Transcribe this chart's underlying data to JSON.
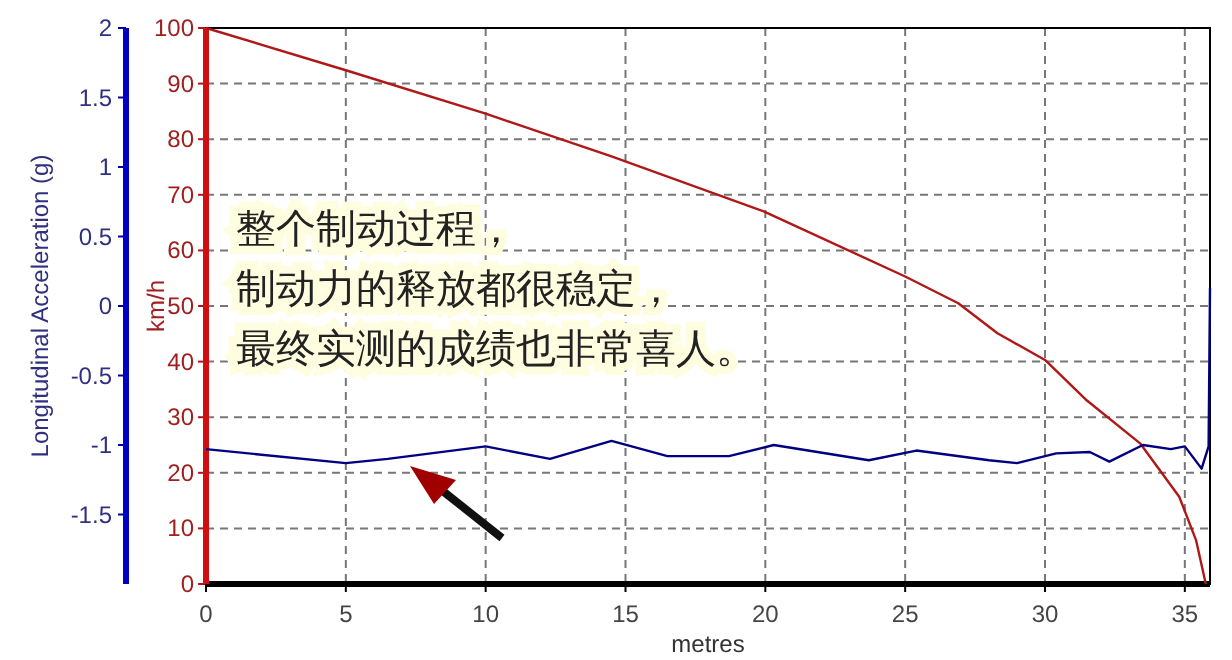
{
  "chart_data": {
    "type": "line",
    "xlabel": "metres",
    "ylabel": "km/h",
    "y2label": "Longitudinal Acceleration (g)",
    "xlim": [
      0,
      35.9
    ],
    "xticks": [
      0,
      5,
      10,
      15,
      20,
      25,
      30,
      35
    ],
    "ylim": [
      0,
      100
    ],
    "yticks": [
      0,
      10,
      20,
      30,
      40,
      50,
      60,
      70,
      80,
      90,
      100
    ],
    "y2lim": [
      -2,
      2
    ],
    "y2ticks": [
      2,
      1.5,
      1,
      0.5,
      0,
      -0.5,
      -1,
      -1.5
    ],
    "grid": true,
    "annotations": [
      "整个制动过程，",
      "制动力的释放都很稳定，",
      "最终实测的成绩也非常喜人。"
    ],
    "series": [
      {
        "color": "#b01818",
        "x": [
          0,
          5,
          10,
          14.5,
          20,
          25,
          26.9,
          28.3,
          30,
          31.5,
          33.4,
          34.8,
          35.4,
          35.75
        ],
        "values": [
          100,
          92.4,
          84.6,
          76.9,
          66.9,
          55.3,
          50.5,
          45.1,
          40.3,
          33,
          25.3,
          15.7,
          7.9,
          0
        ]
      },
      {
        "color": "#000080",
        "axis": "y2",
        "x": [
          0,
          5,
          6.5,
          10,
          12.3,
          14.5,
          16.5,
          18.7,
          20.3,
          23.7,
          25.4,
          28,
          29,
          30.4,
          31.6,
          32.3,
          33.5,
          34.5,
          35,
          35.6,
          35.85,
          35.9
        ],
        "values": [
          -1.03,
          -1.13,
          -1.1,
          -1.01,
          -1.1,
          -0.97,
          -1.08,
          -1.08,
          -1,
          -1.11,
          -1.04,
          -1.11,
          -1.13,
          -1.06,
          -1.05,
          -1.12,
          -1,
          -1.03,
          -1.01,
          -1.17,
          -1.01,
          0.13
        ]
      }
    ]
  }
}
